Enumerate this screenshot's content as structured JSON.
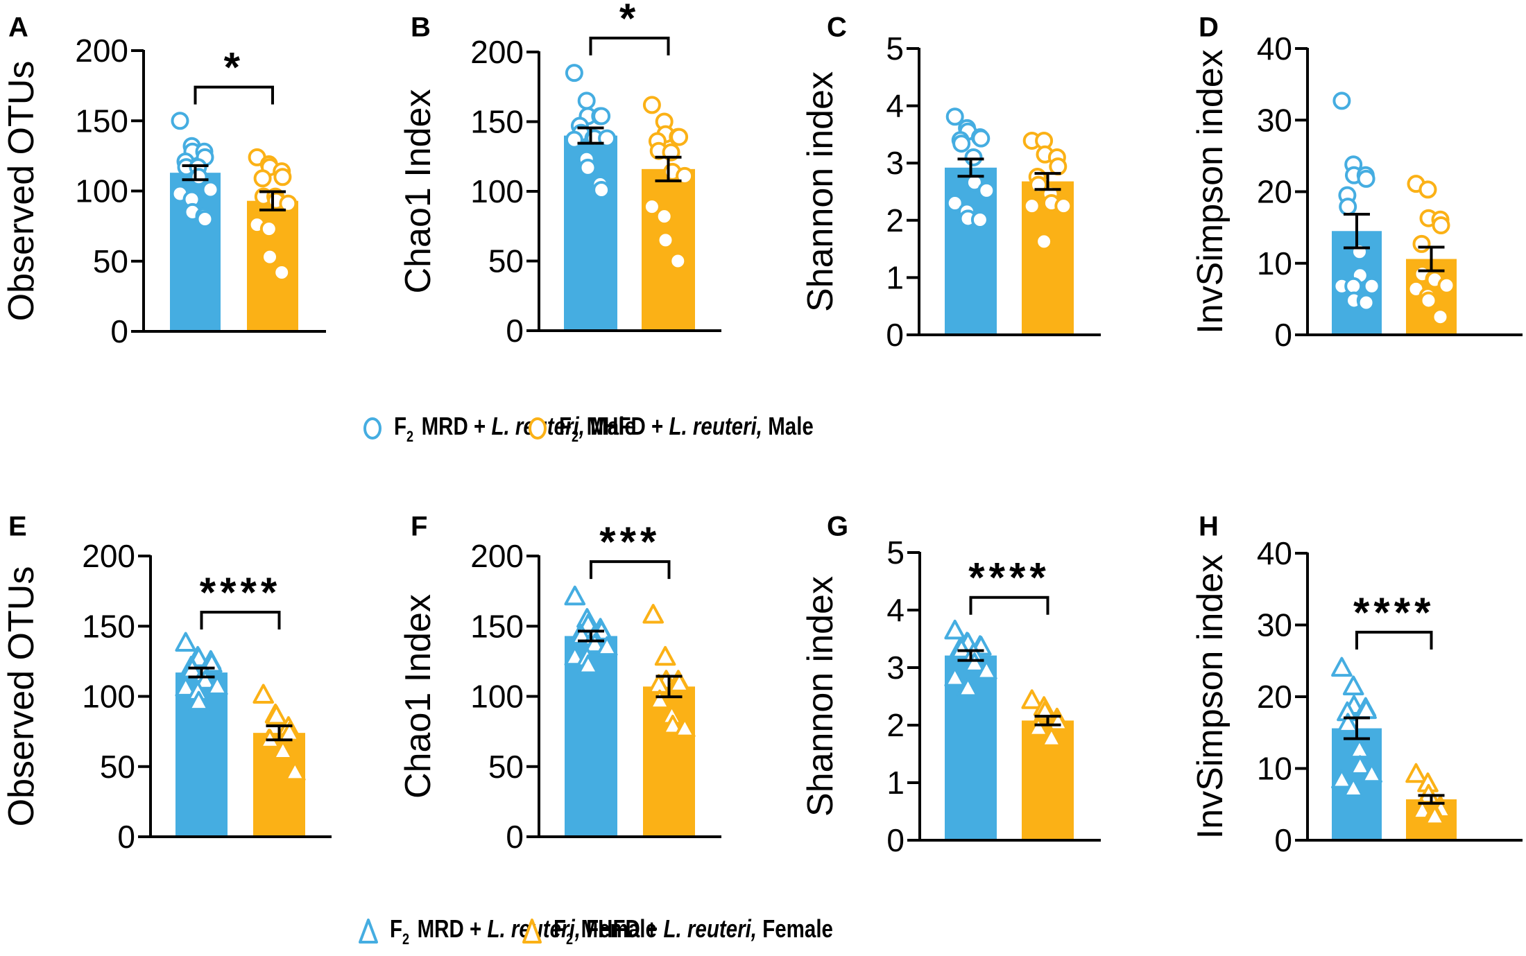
{
  "colors": {
    "mrd": "#45ADE1",
    "mhfd": "#FBB116",
    "axis": "#000000",
    "point_fill": "#ffffff"
  },
  "legends": {
    "male": [
      {
        "marker": "circle-icon",
        "series": "mrd",
        "prefix": "F",
        "sub": "2",
        "group": " MRD + ",
        "species": "L. reuteri,",
        "sex": " Male"
      },
      {
        "marker": "circle-icon",
        "series": "mhfd",
        "prefix": "F",
        "sub": "2",
        "group": " MHFD + ",
        "species": "L. reuteri,",
        "sex": " Male"
      }
    ],
    "female": [
      {
        "marker": "triangle-icon",
        "series": "mrd",
        "prefix": "F",
        "sub": "2",
        "group": " MRD + ",
        "species": "L. reuteri,",
        "sex": " Female"
      },
      {
        "marker": "triangle-icon",
        "series": "mhfd",
        "prefix": "F",
        "sub": "2",
        "group": " MHFD + ",
        "species": "L. reuteri,",
        "sex": " Female"
      }
    ]
  },
  "chart_data": [
    {
      "panel": "A",
      "type": "bar",
      "marker": "circle",
      "ylabel": "Observed OTUs",
      "ylim": [
        0,
        200
      ],
      "yticks": [
        0,
        50,
        100,
        150,
        200
      ],
      "categories": [
        "F2 MRD + L. reuteri, Male",
        "F2 MHFD + L. reuteri, Male"
      ],
      "series": [
        {
          "name": "F2 MRD + L. reuteri, Male",
          "color_key": "mrd",
          "mean": 113,
          "sem": 5,
          "points": [
            150,
            132,
            128,
            128,
            124,
            121,
            117,
            117,
            110,
            101,
            98,
            94,
            85,
            82,
            80
          ]
        },
        {
          "name": "F2 MHFD + L. reuteri, Male",
          "color_key": "mhfd",
          "mean": 93,
          "sem": 6.5,
          "points": [
            124,
            119,
            117,
            114,
            110,
            109,
            96,
            96,
            93,
            91,
            76,
            73,
            53,
            42
          ]
        }
      ],
      "significance": {
        "label": "*",
        "y": 174
      }
    },
    {
      "panel": "B",
      "type": "bar",
      "marker": "circle",
      "ylabel": "Chao1 Index",
      "ylim": [
        0,
        200
      ],
      "yticks": [
        0,
        50,
        100,
        150,
        200
      ],
      "categories": [
        "F2 MRD + L. reuteri, Male",
        "F2 MHFD + L. reuteri, Male"
      ],
      "series": [
        {
          "name": "F2 MRD + L. reuteri, Male",
          "color_key": "mrd",
          "mean": 140,
          "sem": 5.5,
          "points": [
            185,
            165,
            154,
            154,
            154,
            147,
            142,
            138,
            138,
            138,
            137,
            123,
            117,
            105,
            101
          ]
        },
        {
          "name": "F2 MHFD + L. reuteri, Male",
          "color_key": "mhfd",
          "mean": 116,
          "sem": 8.5,
          "points": [
            162,
            150,
            141,
            139,
            139,
            136,
            129,
            128,
            114,
            111,
            89,
            82,
            65,
            50
          ]
        }
      ],
      "significance": {
        "label": "*",
        "y": 210
      }
    },
    {
      "panel": "C",
      "type": "bar",
      "marker": "circle",
      "ylabel": "Shannon index",
      "ylim": [
        0,
        5
      ],
      "yticks": [
        0,
        1,
        2,
        3,
        4,
        5
      ],
      "categories": [
        "F2 MRD + L. reuteri, Male",
        "F2 MHFD + L. reuteri, Male"
      ],
      "series": [
        {
          "name": "F2 MRD + L. reuteri, Male",
          "color_key": "mrd",
          "mean": 2.92,
          "sem": 0.15,
          "points": [
            3.81,
            3.61,
            3.55,
            3.45,
            3.43,
            3.4,
            3.34,
            3.1,
            2.66,
            2.52,
            2.3,
            2.15,
            2.03,
            2.01
          ]
        },
        {
          "name": "F2 MHFD + L. reuteri, Male",
          "color_key": "mhfd",
          "mean": 2.68,
          "sem": 0.14,
          "points": [
            3.39,
            3.39,
            3.15,
            3.1,
            2.94,
            2.76,
            2.62,
            2.46,
            2.3,
            2.25,
            2.25,
            1.63
          ]
        }
      ],
      "significance": null
    },
    {
      "panel": "D",
      "type": "bar",
      "marker": "circle",
      "ylabel": "InvSimpson index",
      "ylim": [
        0,
        40
      ],
      "yticks": [
        0,
        10,
        20,
        30,
        40
      ],
      "categories": [
        "F2 MRD + L. reuteri, Male",
        "F2 MHFD + L. reuteri, Male"
      ],
      "series": [
        {
          "name": "F2 MRD + L. reuteri, Male",
          "color_key": "mrd",
          "mean": 14.5,
          "sem": 2.35,
          "points": [
            32.7,
            23.8,
            22.3,
            22.3,
            21.8,
            19.5,
            17.9,
            11.6,
            8.3,
            6.8,
            6.8,
            6.8,
            4.8,
            4.8,
            4.5
          ]
        },
        {
          "name": "F2 MHFD + L. reuteri, Male",
          "color_key": "mhfd",
          "mean": 10.6,
          "sem": 1.65,
          "points": [
            21.1,
            20.3,
            16.3,
            16.1,
            15.3,
            12.7,
            8.5,
            7.8,
            7.7,
            6.9,
            6.4,
            5.4,
            4.8,
            2.5
          ]
        }
      ],
      "significance": null
    },
    {
      "panel": "E",
      "type": "bar",
      "marker": "triangle",
      "ylabel": "Observed OTUs",
      "ylim": [
        0,
        200
      ],
      "yticks": [
        0,
        50,
        100,
        150,
        200
      ],
      "categories": [
        "F2 MRD + L. reuteri, Female",
        "F2 MHFD + L. reuteri, Female"
      ],
      "series": [
        {
          "name": "F2 MRD + L. reuteri, Female",
          "color_key": "mrd",
          "mean": 117,
          "sem": 3.2,
          "points": [
            138,
            128,
            127,
            125,
            123,
            121,
            119,
            116,
            111,
            107,
            106,
            103,
            96
          ]
        },
        {
          "name": "F2 MHFD + L. reuteri, Female",
          "color_key": "mhfd",
          "mean": 74,
          "sem": 5,
          "points": [
            101,
            87,
            86,
            78,
            74,
            69,
            69,
            62,
            61,
            46
          ]
        }
      ],
      "significance": {
        "label": "****",
        "y": 160
      }
    },
    {
      "panel": "F",
      "type": "bar",
      "marker": "triangle",
      "ylabel": "Chao1 Index",
      "ylim": [
        0,
        200
      ],
      "yticks": [
        0,
        50,
        100,
        150,
        200
      ],
      "categories": [
        "F2 MRD + L. reuteri, Female",
        "F2 MHFD + L. reuteri, Female"
      ],
      "series": [
        {
          "name": "F2 MRD + L. reuteri, Female",
          "color_key": "mrd",
          "mean": 143,
          "sem": 3.5,
          "points": [
            171,
            155,
            151,
            148,
            146,
            144,
            143,
            142,
            137,
            135,
            128,
            127,
            122
          ]
        },
        {
          "name": "F2 MHFD + L. reuteri, Female",
          "color_key": "mhfd",
          "mean": 107,
          "sem": 7.3,
          "points": [
            158,
            128,
            111,
            111,
            109,
            108,
            97,
            86,
            79,
            77
          ]
        }
      ],
      "significance": {
        "label": "***",
        "y": 196
      }
    },
    {
      "panel": "G",
      "type": "bar",
      "marker": "triangle",
      "ylabel": "Shannon index",
      "ylim": [
        0,
        5
      ],
      "yticks": [
        0,
        1,
        2,
        3,
        4,
        5
      ],
      "categories": [
        "F2 MRD + L. reuteri, Female",
        "F2 MHFD + L. reuteri, Female"
      ],
      "series": [
        {
          "name": "F2 MRD + L. reuteri, Female",
          "color_key": "mrd",
          "mean": 3.21,
          "sem": 0.085,
          "points": [
            3.64,
            3.43,
            3.42,
            3.37,
            3.36,
            3.34,
            3.31,
            3.24,
            3.07,
            2.94,
            2.82,
            2.64,
            2.64
          ]
        },
        {
          "name": "F2 MHFD + L. reuteri, Female",
          "color_key": "mhfd",
          "mean": 2.08,
          "sem": 0.075,
          "points": [
            2.43,
            2.31,
            2.23,
            2.11,
            2.05,
            1.98,
            1.95,
            1.8,
            1.77
          ]
        }
      ],
      "significance": {
        "label": "****",
        "y": 4.22
      }
    },
    {
      "panel": "H",
      "type": "bar",
      "marker": "triangle",
      "ylabel": "InvSimpson index",
      "ylim": [
        0,
        40
      ],
      "yticks": [
        0,
        10,
        20,
        30,
        40
      ],
      "categories": [
        "F2 MRD + L. reuteri, Female",
        "F2 MHFD + L. reuteri, Female"
      ],
      "series": [
        {
          "name": "F2 MRD + L. reuteri, Female",
          "color_key": "mrd",
          "mean": 15.6,
          "sem": 1.45,
          "points": [
            24.0,
            21.4,
            18.7,
            18.4,
            18.1,
            17.8,
            16.2,
            12.6,
            10.3,
            9.2,
            8.4,
            7.2
          ]
        },
        {
          "name": "F2 MHFD + L. reuteri, Female",
          "color_key": "mhfd",
          "mean": 5.7,
          "sem": 0.55,
          "points": [
            9.2,
            7.9,
            6.3,
            4.7,
            4.3,
            4.3,
            4.1,
            3.8,
            3.3
          ]
        }
      ],
      "significance": {
        "label": "****",
        "y": 29
      }
    }
  ]
}
